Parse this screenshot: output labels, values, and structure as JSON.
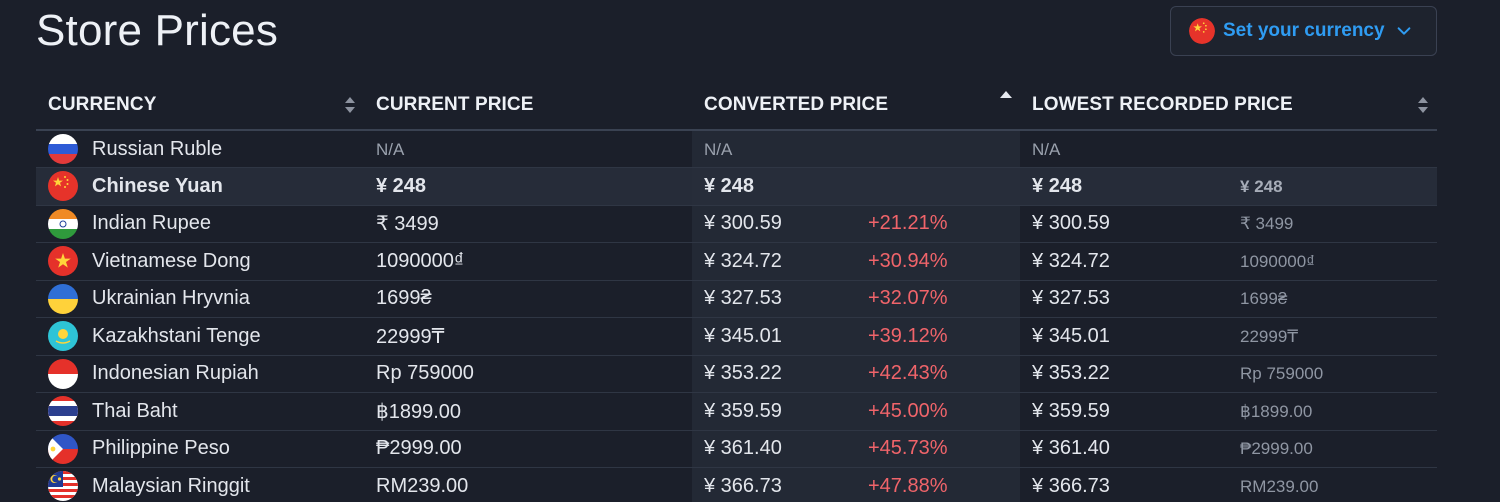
{
  "page": {
    "title": "Store Prices"
  },
  "currency_button": {
    "label": "Set your currency",
    "flag": "china-flag-icon",
    "chevron": "chevron-down-icon"
  },
  "columns": {
    "currency": "CURRENCY",
    "current_price": "CURRENT PRICE",
    "converted_price": "CONVERTED PRICE",
    "lowest_price": "LOWEST RECORDED PRICE"
  },
  "rows": [
    {
      "flag": "ru",
      "currency": "Russian Ruble",
      "current": "N/A",
      "converted": "N/A",
      "diff": "",
      "lowest": "N/A",
      "lowest_orig": ""
    },
    {
      "flag": "cn",
      "currency": "Chinese Yuan",
      "current": "¥ 248",
      "converted": "¥ 248",
      "diff": "",
      "lowest": "¥ 248",
      "lowest_orig": "¥ 248"
    },
    {
      "flag": "in",
      "currency": "Indian Rupee",
      "current": "₹ 3499",
      "converted": "¥ 300.59",
      "diff": "+21.21%",
      "lowest": "¥ 300.59",
      "lowest_orig": "₹ 3499"
    },
    {
      "flag": "vn",
      "currency": "Vietnamese Dong",
      "current": "1090000₫",
      "converted": "¥ 324.72",
      "diff": "+30.94%",
      "lowest": "¥ 324.72",
      "lowest_orig": "1090000₫"
    },
    {
      "flag": "ua",
      "currency": "Ukrainian Hryvnia",
      "current": "1699₴",
      "converted": "¥ 327.53",
      "diff": "+32.07%",
      "lowest": "¥ 327.53",
      "lowest_orig": "1699₴"
    },
    {
      "flag": "kz",
      "currency": "Kazakhstani Tenge",
      "current": "22999₸",
      "converted": "¥ 345.01",
      "diff": "+39.12%",
      "lowest": "¥ 345.01",
      "lowest_orig": "22999₸"
    },
    {
      "flag": "id",
      "currency": "Indonesian Rupiah",
      "current": "Rp 759000",
      "converted": "¥ 353.22",
      "diff": "+42.43%",
      "lowest": "¥ 353.22",
      "lowest_orig": "Rp 759000"
    },
    {
      "flag": "th",
      "currency": "Thai Baht",
      "current": "฿1899.00",
      "converted": "¥ 359.59",
      "diff": "+45.00%",
      "lowest": "¥ 359.59",
      "lowest_orig": "฿1899.00"
    },
    {
      "flag": "ph",
      "currency": "Philippine Peso",
      "current": "₱2999.00",
      "converted": "¥ 361.40",
      "diff": "+45.73%",
      "lowest": "¥ 361.40",
      "lowest_orig": "₱2999.00"
    },
    {
      "flag": "my",
      "currency": "Malaysian Ringgit",
      "current": "RM239.00",
      "converted": "¥ 366.73",
      "diff": "+47.88%",
      "lowest": "¥ 366.73",
      "lowest_orig": "RM239.00"
    }
  ],
  "colors": {
    "accent": "#2f9cf2",
    "negative": "#f0646a",
    "background": "#1b1f2a"
  }
}
